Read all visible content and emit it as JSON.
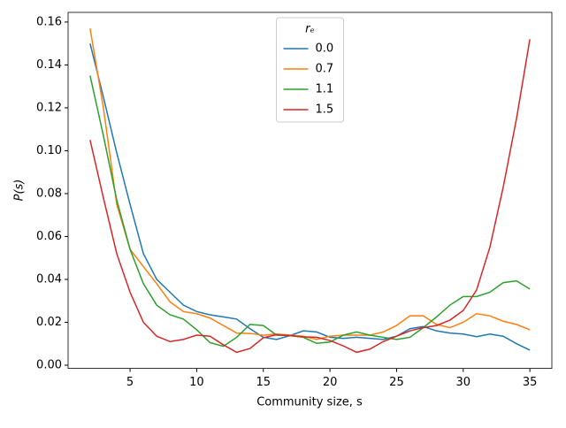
{
  "chart_data": {
    "type": "line",
    "xlabel": "Community size, s",
    "ylabel": "P(s)",
    "legend_title": "rₑ",
    "legend_loc": "upper center",
    "x": [
      2,
      3,
      4,
      5,
      6,
      7,
      8,
      9,
      10,
      11,
      12,
      13,
      14,
      15,
      16,
      17,
      18,
      19,
      20,
      21,
      22,
      23,
      24,
      25,
      26,
      27,
      28,
      29,
      30,
      31,
      32,
      33,
      34,
      35
    ],
    "series": [
      {
        "name": "0.0",
        "color": "#1f77b4",
        "values": [
          0.15,
          0.125,
          0.099,
          0.075,
          0.052,
          0.04,
          0.034,
          0.028,
          0.025,
          0.0235,
          0.0225,
          0.0215,
          0.017,
          0.013,
          0.012,
          0.0138,
          0.016,
          0.0155,
          0.013,
          0.0125,
          0.013,
          0.0125,
          0.012,
          0.0135,
          0.017,
          0.018,
          0.016,
          0.015,
          0.0145,
          0.0133,
          0.0145,
          0.0135,
          0.01,
          0.007
        ]
      },
      {
        "name": "0.7",
        "color": "#ff7f0e",
        "values": [
          0.157,
          0.12,
          0.075,
          0.054,
          0.046,
          0.038,
          0.0295,
          0.025,
          0.024,
          0.022,
          0.0185,
          0.015,
          0.0148,
          0.014,
          0.0145,
          0.014,
          0.0135,
          0.012,
          0.0135,
          0.014,
          0.014,
          0.014,
          0.0155,
          0.0185,
          0.023,
          0.023,
          0.019,
          0.0175,
          0.02,
          0.024,
          0.023,
          0.0205,
          0.019,
          0.0165
        ]
      },
      {
        "name": "1.1",
        "color": "#2ca02c",
        "values": [
          0.135,
          0.107,
          0.077,
          0.054,
          0.038,
          0.028,
          0.0235,
          0.0215,
          0.0165,
          0.0105,
          0.0088,
          0.013,
          0.019,
          0.0185,
          0.014,
          0.0138,
          0.013,
          0.0102,
          0.0108,
          0.014,
          0.0155,
          0.014,
          0.013,
          0.012,
          0.013,
          0.0175,
          0.0225,
          0.028,
          0.032,
          0.032,
          0.034,
          0.0385,
          0.0393,
          0.0355
        ]
      },
      {
        "name": "1.5",
        "color": "#d62728",
        "values": [
          0.105,
          0.078,
          0.052,
          0.034,
          0.02,
          0.0135,
          0.011,
          0.012,
          0.014,
          0.0135,
          0.0095,
          0.006,
          0.0078,
          0.0128,
          0.0142,
          0.0138,
          0.0132,
          0.013,
          0.0115,
          0.009,
          0.006,
          0.0075,
          0.011,
          0.0135,
          0.016,
          0.0175,
          0.0185,
          0.021,
          0.0255,
          0.035,
          0.055,
          0.083,
          0.115,
          0.152
        ]
      }
    ],
    "xlim": [
      0.35,
      36.65
    ],
    "xticks": [
      5,
      10,
      15,
      20,
      25,
      30,
      35
    ],
    "ylim": [
      -0.0015,
      0.1645
    ],
    "yticks": [
      {
        "value": 0,
        "label": "0.00"
      },
      {
        "value": 0.02,
        "label": "0.02"
      },
      {
        "value": 0.04,
        "label": "0.04"
      },
      {
        "value": 0.06,
        "label": "0.06"
      },
      {
        "value": 0.08,
        "label": "0.08"
      },
      {
        "value": 0.1,
        "label": "0.10"
      },
      {
        "value": 0.12,
        "label": "0.12"
      },
      {
        "value": 0.14,
        "label": "0.14"
      },
      {
        "value": 0.16,
        "label": "0.16"
      }
    ],
    "grid": false
  }
}
